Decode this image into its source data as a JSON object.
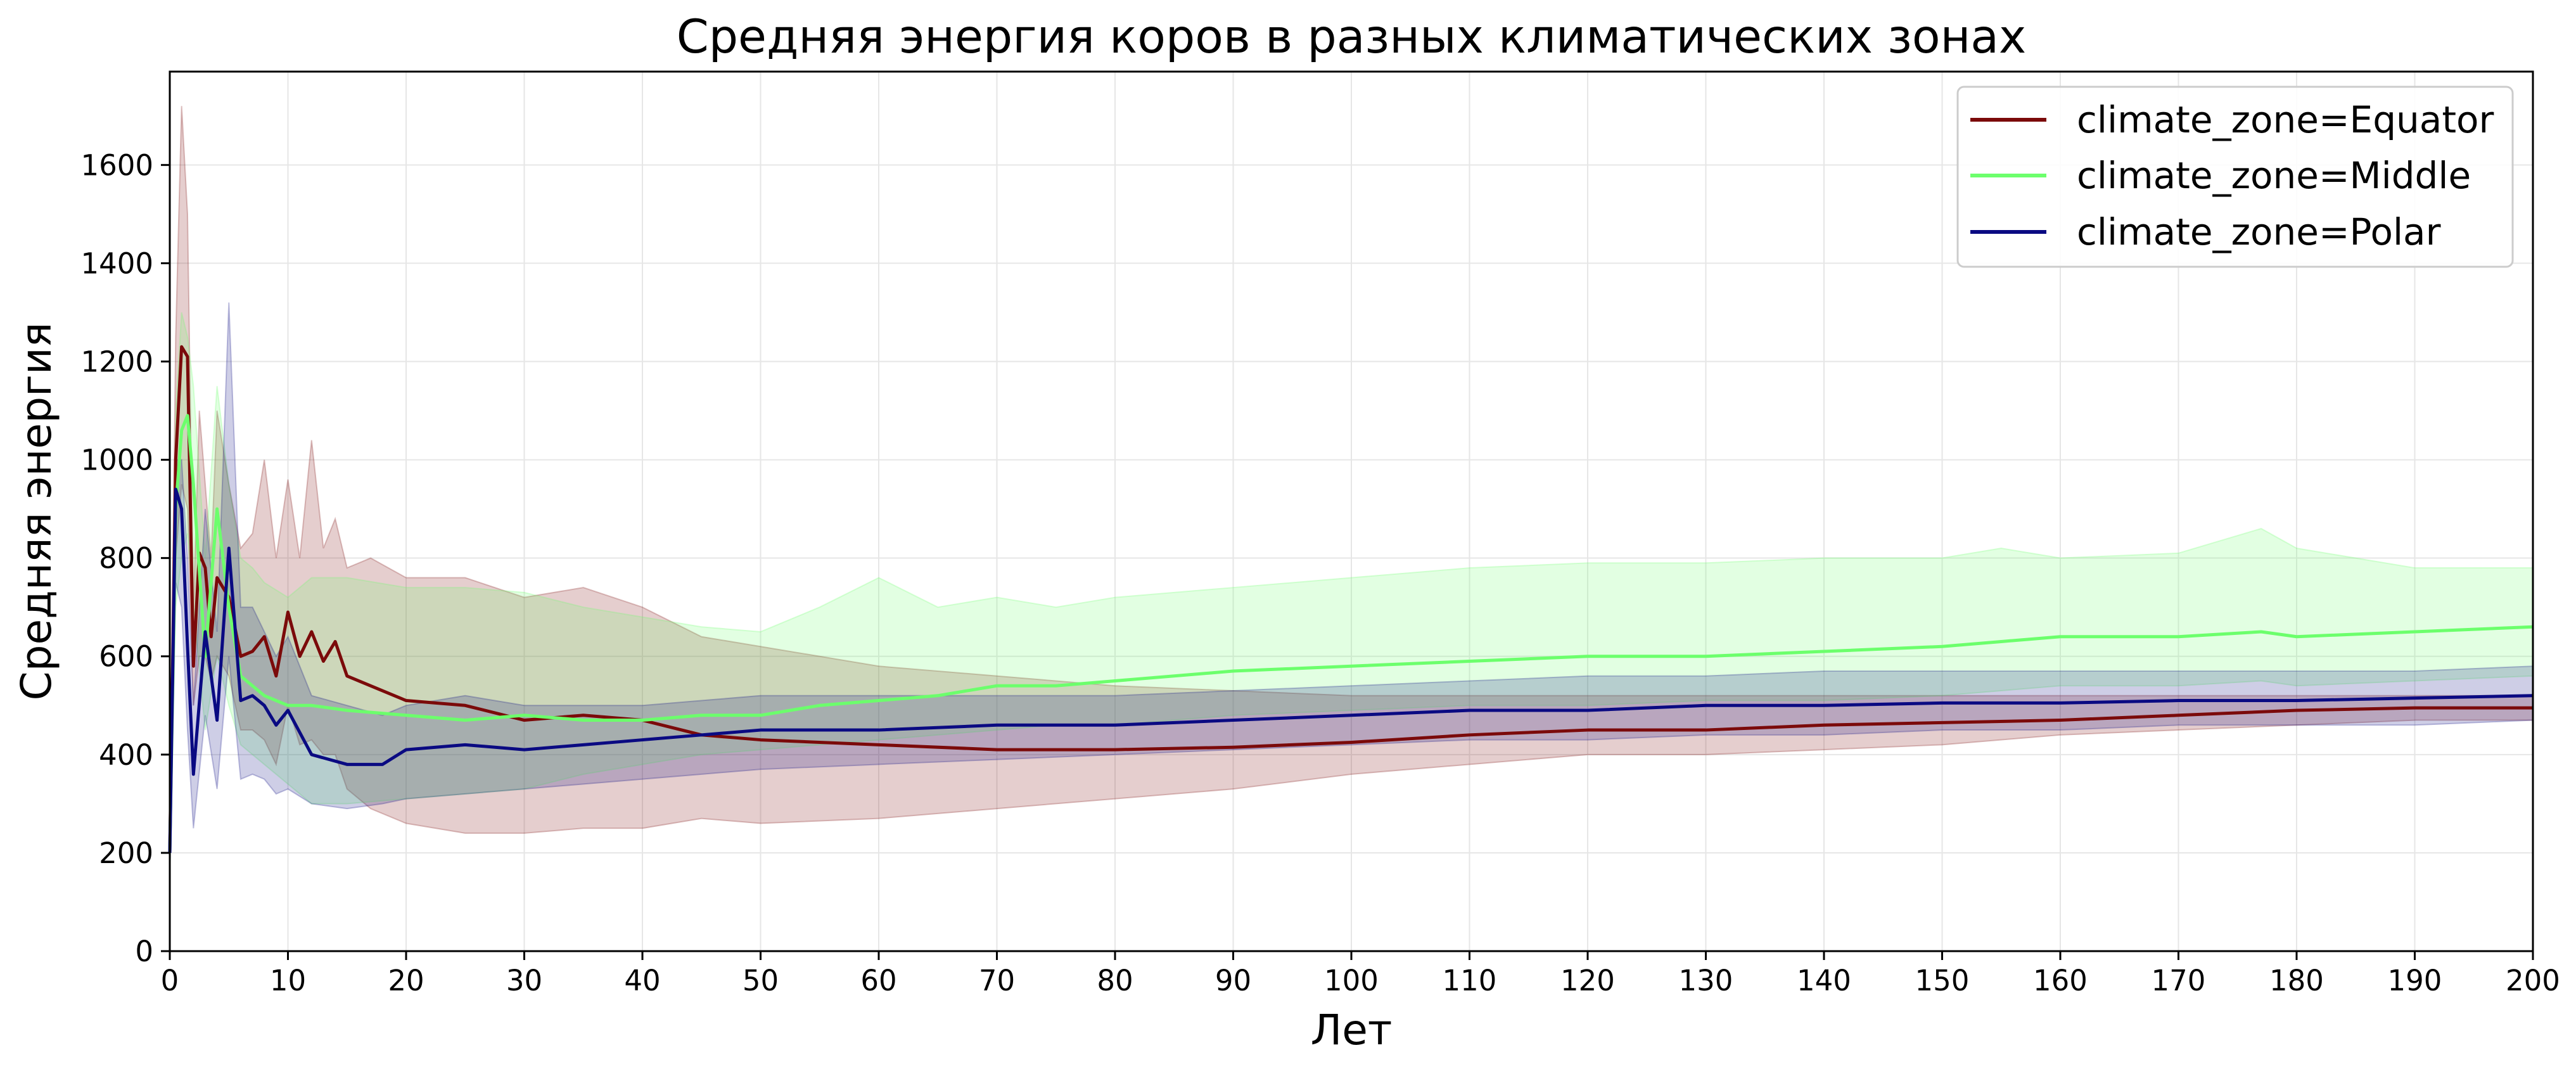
{
  "chart_data": {
    "type": "line",
    "title": "Средняя энергия коров в разных климатических зонах",
    "xlabel": "Лет",
    "ylabel": "Средняя энергия",
    "xlim": [
      0,
      200
    ],
    "ylim": [
      0,
      1790
    ],
    "xticks": [
      0,
      10,
      20,
      30,
      40,
      50,
      60,
      70,
      80,
      90,
      100,
      110,
      120,
      130,
      140,
      150,
      160,
      170,
      180,
      190,
      200
    ],
    "yticks": [
      0,
      200,
      400,
      600,
      800,
      1000,
      1200,
      1400,
      1600
    ],
    "grid": true,
    "legend_position": "top-right",
    "series": [
      {
        "name": "climate_zone=Equator",
        "color": "#7b0a0a",
        "x": [
          0,
          0.5,
          1,
          1.5,
          2,
          2.5,
          3,
          3.5,
          4,
          5,
          6,
          7,
          8,
          9,
          10,
          11,
          12,
          13,
          14,
          15,
          17,
          20,
          25,
          30,
          35,
          40,
          45,
          50,
          60,
          70,
          80,
          90,
          100,
          110,
          120,
          130,
          140,
          150,
          160,
          170,
          180,
          190,
          200
        ],
        "values": [
          200,
          1000,
          1230,
          1210,
          580,
          810,
          780,
          640,
          760,
          720,
          600,
          610,
          640,
          560,
          690,
          600,
          650,
          590,
          630,
          560,
          540,
          510,
          500,
          470,
          480,
          470,
          440,
          430,
          420,
          410,
          410,
          415,
          425,
          440,
          450,
          450,
          460,
          465,
          470,
          480,
          490,
          495,
          495
        ],
        "lower": [
          150,
          800,
          950,
          900,
          500,
          600,
          600,
          550,
          600,
          560,
          450,
          450,
          430,
          380,
          500,
          420,
          430,
          400,
          400,
          330,
          290,
          260,
          240,
          240,
          250,
          250,
          270,
          260,
          270,
          290,
          310,
          330,
          360,
          380,
          400,
          400,
          410,
          420,
          440,
          450,
          460,
          470,
          470
        ],
        "upper": [
          260,
          1250,
          1720,
          1500,
          700,
          1100,
          950,
          800,
          1100,
          950,
          820,
          850,
          1000,
          800,
          960,
          800,
          1040,
          820,
          880,
          780,
          800,
          760,
          760,
          720,
          740,
          700,
          640,
          620,
          580,
          560,
          540,
          530,
          520,
          520,
          520,
          520,
          520,
          520,
          520,
          520,
          520,
          520,
          520
        ]
      },
      {
        "name": "climate_zone=Middle",
        "color": "#6cff6c",
        "x": [
          0,
          0.5,
          1,
          1.5,
          2,
          3,
          4,
          5,
          6,
          7,
          8,
          10,
          12,
          15,
          20,
          25,
          30,
          35,
          40,
          45,
          50,
          55,
          60,
          65,
          70,
          75,
          80,
          90,
          100,
          110,
          120,
          130,
          140,
          150,
          155,
          160,
          170,
          177,
          180,
          190,
          200
        ],
        "values": [
          200,
          900,
          1060,
          1090,
          950,
          600,
          900,
          700,
          560,
          540,
          520,
          500,
          500,
          490,
          480,
          470,
          480,
          470,
          470,
          480,
          480,
          500,
          510,
          520,
          540,
          540,
          550,
          570,
          580,
          590,
          600,
          600,
          610,
          620,
          630,
          640,
          640,
          650,
          640,
          650,
          660
        ],
        "lower": [
          150,
          700,
          800,
          850,
          700,
          450,
          600,
          500,
          420,
          400,
          380,
          340,
          300,
          300,
          310,
          320,
          330,
          360,
          380,
          400,
          410,
          420,
          430,
          440,
          450,
          460,
          460,
          480,
          490,
          500,
          500,
          510,
          510,
          520,
          530,
          540,
          540,
          550,
          540,
          550,
          560
        ],
        "upper": [
          260,
          1100,
          1300,
          1250,
          1150,
          800,
          1150,
          950,
          800,
          780,
          750,
          720,
          760,
          760,
          740,
          740,
          730,
          700,
          680,
          660,
          650,
          700,
          760,
          700,
          720,
          700,
          720,
          740,
          760,
          780,
          790,
          790,
          800,
          800,
          820,
          800,
          810,
          860,
          820,
          780,
          780
        ]
      },
      {
        "name": "climate_zone=Polar",
        "color": "#0a0a82",
        "x": [
          0,
          0.5,
          1,
          1.5,
          2,
          3,
          4,
          5,
          6,
          7,
          8,
          9,
          10,
          12,
          15,
          18,
          20,
          25,
          30,
          35,
          40,
          45,
          50,
          60,
          70,
          80,
          90,
          100,
          110,
          120,
          130,
          140,
          150,
          160,
          170,
          180,
          190,
          200
        ],
        "values": [
          200,
          940,
          900,
          620,
          360,
          650,
          470,
          820,
          510,
          520,
          500,
          460,
          490,
          400,
          380,
          380,
          410,
          420,
          410,
          420,
          430,
          440,
          450,
          450,
          460,
          460,
          470,
          480,
          490,
          490,
          500,
          500,
          505,
          505,
          510,
          510,
          515,
          520
        ],
        "lower": [
          150,
          750,
          700,
          450,
          250,
          480,
          330,
          600,
          350,
          360,
          350,
          320,
          330,
          300,
          290,
          300,
          310,
          320,
          330,
          340,
          350,
          360,
          370,
          380,
          390,
          400,
          410,
          420,
          430,
          430,
          440,
          440,
          450,
          450,
          460,
          460,
          460,
          470
        ],
        "upper": [
          260,
          1000,
          1000,
          800,
          500,
          900,
          650,
          1320,
          700,
          700,
          650,
          600,
          640,
          520,
          500,
          480,
          500,
          520,
          500,
          500,
          500,
          510,
          520,
          520,
          520,
          520,
          530,
          540,
          550,
          560,
          560,
          570,
          570,
          570,
          570,
          570,
          570,
          580
        ]
      }
    ]
  }
}
